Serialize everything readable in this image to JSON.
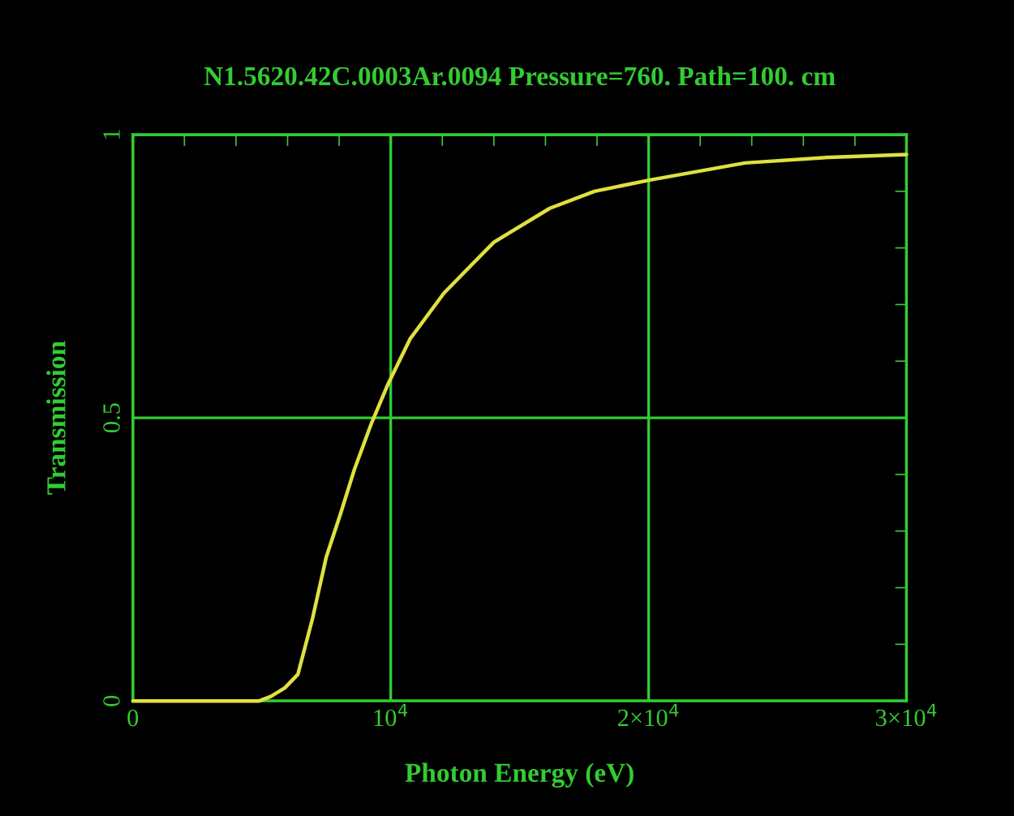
{
  "chart_data": {
    "type": "line",
    "title": "N1.5620.42C.0003Ar.0094 Pressure=760. Path=100. cm",
    "xlabel": "Photon Energy (eV)",
    "ylabel": "Transmission",
    "series": [
      {
        "color": "#e0e040",
        "x": [
          0,
          2000,
          4000,
          4800,
          4900,
          5350,
          5890,
          6400,
          6970,
          7500,
          8050,
          8600,
          9250,
          9900,
          10760,
          12060,
          12920,
          14000,
          16170,
          17900,
          20060,
          23740,
          27000,
          30000
        ],
        "values": [
          0,
          0,
          0,
          0,
          0,
          0.008,
          0.023,
          0.047,
          0.146,
          0.254,
          0.33,
          0.41,
          0.49,
          0.56,
          0.64,
          0.72,
          0.76,
          0.81,
          0.87,
          0.9,
          0.92,
          0.95,
          0.96,
          0.965
        ]
      }
    ],
    "xlim": [
      0,
      30000
    ],
    "ylim": [
      0,
      1
    ],
    "xticks": [
      0,
      {
        "value": 10000,
        "label": "10$^{4}$"
      },
      {
        "value": 20000,
        "label": "2×10$^{4}$"
      },
      {
        "value": 30000,
        "label": "3×10$^{4}$"
      }
    ],
    "yticks": [
      0,
      0.5,
      1
    ],
    "grid": true,
    "marker": "none",
    "line_style": "solid"
  }
}
